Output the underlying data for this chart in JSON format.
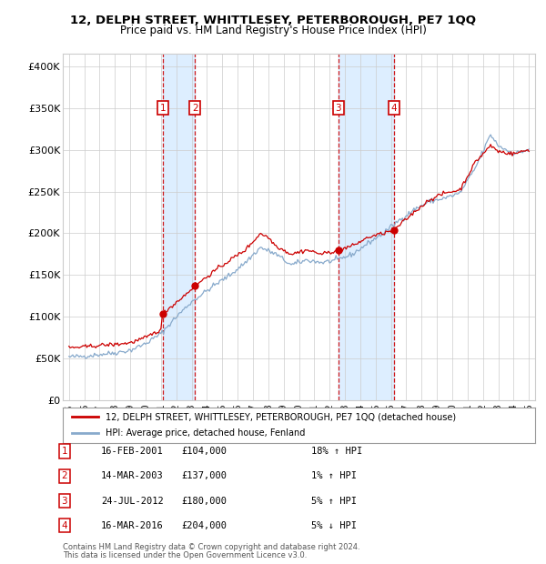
{
  "title": "12, DELPH STREET, WHITTLESEY, PETERBOROUGH, PE7 1QQ",
  "subtitle": "Price paid vs. HM Land Registry's House Price Index (HPI)",
  "ylabel_ticks": [
    "£0",
    "£50K",
    "£100K",
    "£150K",
    "£200K",
    "£250K",
    "£300K",
    "£350K",
    "£400K"
  ],
  "ytick_values": [
    0,
    50000,
    100000,
    150000,
    200000,
    250000,
    300000,
    350000,
    400000
  ],
  "ylim": [
    0,
    415000
  ],
  "xlim_start": 1994.6,
  "xlim_end": 2025.4,
  "purchases": [
    {
      "num": 1,
      "date_str": "16-FEB-2001",
      "price": 104000,
      "hpi_pct": "18%",
      "hpi_dir": "↑",
      "x": 2001.12
    },
    {
      "num": 2,
      "date_str": "14-MAR-2003",
      "price": 137000,
      "hpi_pct": "1%",
      "hpi_dir": "↑",
      "x": 2003.21
    },
    {
      "num": 3,
      "date_str": "24-JUL-2012",
      "price": 180000,
      "hpi_pct": "5%",
      "hpi_dir": "↑",
      "x": 2012.56
    },
    {
      "num": 4,
      "date_str": "16-MAR-2016",
      "price": 204000,
      "hpi_pct": "5%",
      "hpi_dir": "↓",
      "x": 2016.21
    }
  ],
  "legend_line1": "12, DELPH STREET, WHITTLESEY, PETERBOROUGH, PE7 1QQ (detached house)",
  "legend_line2": "HPI: Average price, detached house, Fenland",
  "footer1": "Contains HM Land Registry data © Crown copyright and database right 2024.",
  "footer2": "This data is licensed under the Open Government Licence v3.0.",
  "red_color": "#cc0000",
  "blue_color": "#88aacc",
  "shade_color": "#ddeeff",
  "background_color": "#ffffff",
  "grid_color": "#cccccc",
  "hpi_anchors_x": [
    1995.0,
    1996.0,
    1997.0,
    1998.0,
    1999.0,
    2000.0,
    2001.0,
    2002.0,
    2003.0,
    2004.5,
    2005.5,
    2006.5,
    2007.5,
    2008.5,
    2009.5,
    2010.5,
    2011.5,
    2012.5,
    2013.5,
    2014.5,
    2015.5,
    2016.5,
    2017.5,
    2018.5,
    2019.5,
    2020.5,
    2021.5,
    2022.5,
    2023.0,
    2024.0,
    2025.0
  ],
  "hpi_anchors_y": [
    52000,
    53000,
    55000,
    57000,
    60000,
    68000,
    80000,
    100000,
    118000,
    138000,
    150000,
    165000,
    183000,
    175000,
    162000,
    168000,
    165000,
    168000,
    175000,
    188000,
    200000,
    215000,
    228000,
    238000,
    242000,
    248000,
    278000,
    318000,
    305000,
    295000,
    300000
  ],
  "pp_anchors_x": [
    1995.0,
    1996.0,
    1997.0,
    1998.0,
    1999.0,
    2000.0,
    2001.0,
    2001.12,
    2002.5,
    2003.21,
    2004.5,
    2005.5,
    2006.5,
    2007.5,
    2008.0,
    2008.5,
    2009.5,
    2010.5,
    2011.5,
    2012.56,
    2013.5,
    2014.5,
    2015.5,
    2016.21,
    2017.5,
    2018.5,
    2019.5,
    2020.5,
    2021.5,
    2022.5,
    2023.0,
    2024.0,
    2025.0
  ],
  "pp_anchors_y": [
    63000,
    64000,
    66000,
    67000,
    69000,
    75000,
    85000,
    104000,
    125000,
    137000,
    155000,
    168000,
    180000,
    200000,
    195000,
    185000,
    175000,
    180000,
    175000,
    180000,
    185000,
    195000,
    200000,
    204000,
    225000,
    240000,
    248000,
    252000,
    285000,
    305000,
    298000,
    295000,
    300000
  ]
}
